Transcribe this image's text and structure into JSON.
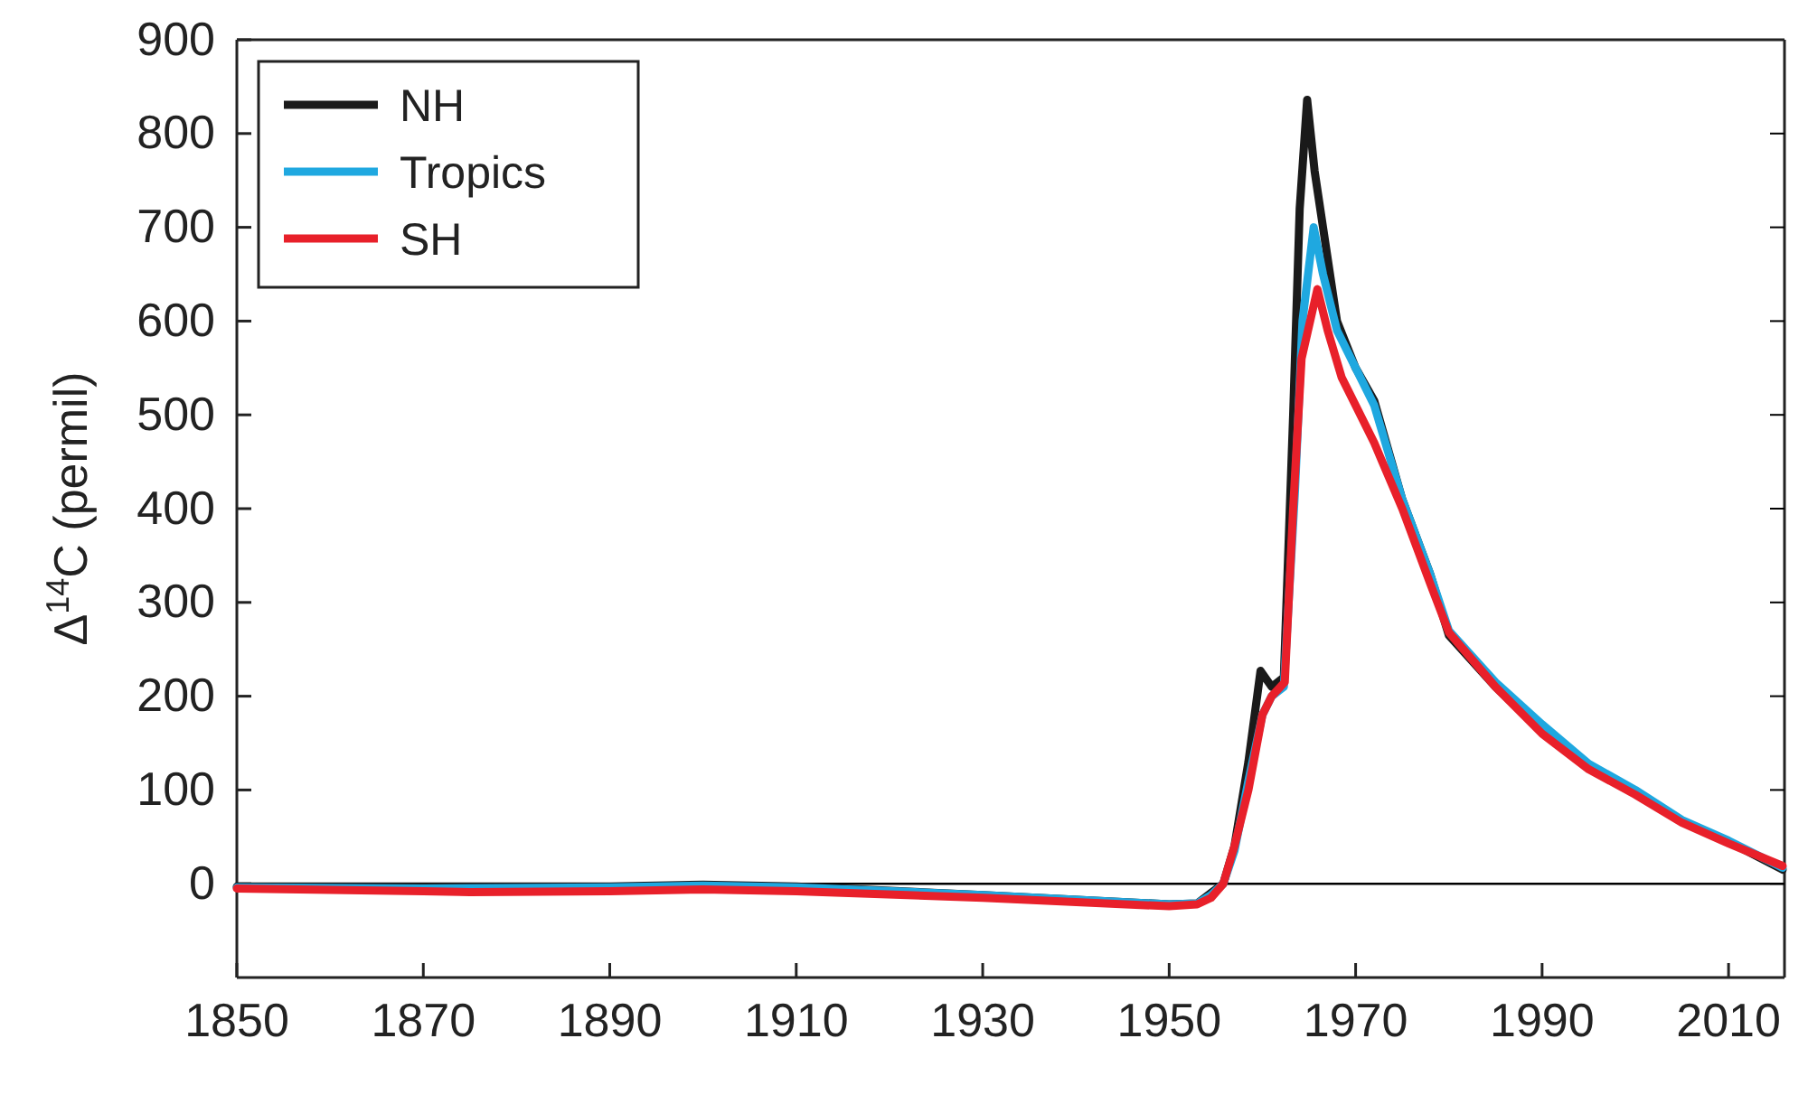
{
  "chart_data": {
    "type": "line",
    "ylabel": "Δ$^{14}$C (permil)",
    "xlim": [
      1850,
      2016
    ],
    "ylim": [
      -100,
      900
    ],
    "xticks": [
      1850,
      1870,
      1890,
      1910,
      1930,
      1950,
      1970,
      1990,
      2010
    ],
    "yticks": [
      0,
      100,
      200,
      300,
      400,
      500,
      600,
      700,
      800,
      900
    ],
    "ref_lines": [
      {
        "axis": "y",
        "value": 0,
        "color": "#000000"
      }
    ],
    "legend": "top left",
    "grid": false,
    "series": [
      {
        "name": "NH",
        "color": "#1a1a1a",
        "x": [
          1850,
          1870,
          1890,
          1900,
          1910,
          1930,
          1950,
          1953,
          1954.5,
          1955.8,
          1957,
          1958.5,
          1959.8,
          1961,
          1962.3,
          1963.3,
          1964,
          1964.8,
          1965.6,
          1966.5,
          1968,
          1970,
          1972,
          1975,
          1978,
          1980,
          1985,
          1990,
          1995,
          2000,
          2005,
          2010,
          2015.8
        ],
        "values": [
          -3,
          -3,
          -3,
          -1,
          -3,
          -12,
          -22,
          -21,
          null,
          0,
          40,
          130,
          227,
          210,
          220,
          500,
          720,
          836,
          760,
          700,
          600,
          550,
          515,
          410,
          330,
          265,
          210,
          162,
          125,
          97,
          67,
          45,
          15
        ]
      },
      {
        "name": "Tropics",
        "color": "#1fa8e0",
        "x": [
          1850,
          1870,
          1890,
          1900,
          1910,
          1930,
          1950,
          1953,
          1954.5,
          1955.8,
          1957,
          1958.5,
          1960,
          1961,
          1962.3,
          1963.5,
          1964.3,
          1965.5,
          1966.5,
          1968,
          1970,
          1972,
          1975,
          1978,
          1980,
          1985,
          1990,
          1995,
          2000,
          2005,
          2010,
          2015.8
        ],
        "values": [
          -4,
          -5,
          -4,
          -2,
          -4,
          -12,
          -22,
          -21,
          -12,
          0,
          35,
          110,
          180,
          200,
          210,
          420,
          600,
          700,
          650,
          590,
          550,
          510,
          410,
          330,
          270,
          215,
          170,
          128,
          100,
          68,
          46,
          17
        ]
      },
      {
        "name": "SH",
        "color": "#e8202a",
        "x": [
          1850,
          1870,
          1875,
          1890,
          1900,
          1910,
          1930,
          1950,
          1953,
          1954.5,
          1955.8,
          1957,
          1958.5,
          1960,
          1961,
          1962.4,
          1963.3,
          1964.2,
          1965.9,
          1967,
          1968.5,
          1970,
          1972,
          1975,
          1978,
          1980,
          1985,
          1990,
          1995,
          2000,
          2005,
          2010,
          2015.8
        ],
        "values": [
          -5,
          -8,
          -9,
          -8,
          -6,
          -8,
          -15,
          -24,
          -22,
          -15,
          0,
          40,
          100,
          180,
          200,
          215,
          400,
          560,
          634,
          590,
          540,
          510,
          470,
          400,
          320,
          268,
          210,
          160,
          122,
          95,
          65,
          43,
          19
        ]
      }
    ]
  }
}
